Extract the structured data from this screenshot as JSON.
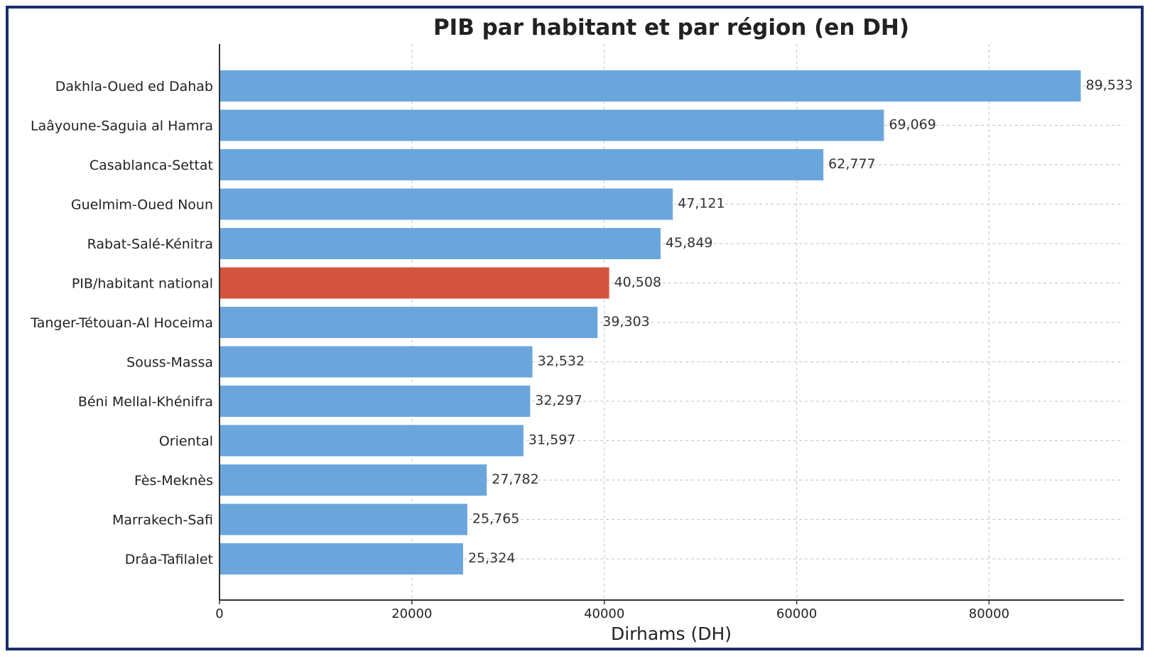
{
  "chart_data": {
    "type": "bar",
    "orientation": "horizontal",
    "title": "PIB par habitant et par région (en DH)",
    "xlabel": "Dirhams (DH)",
    "ylabel": "",
    "xlim": [
      0,
      94000
    ],
    "xticks": [
      0,
      20000,
      40000,
      60000,
      80000
    ],
    "grid": true,
    "categories": [
      "Dakhla-Oued ed Dahab",
      "Laâyoune-Saguia al Hamra",
      "Casablanca-Settat",
      "Guelmim-Oued Noun",
      "Rabat-Salé-Kénitra",
      "PIB/habitant national",
      "Tanger-Tétouan-Al Hoceima",
      "Souss-Massa",
      "Béni Mellal-Khénifra",
      "Oriental",
      "Fès-Meknès",
      "Marrakech-Safi",
      "Drâa-Tafilalet"
    ],
    "values": [
      89533,
      69069,
      62777,
      47121,
      45849,
      40508,
      39303,
      32532,
      32297,
      31597,
      27782,
      25765,
      25324
    ],
    "value_labels": [
      "89,533",
      "69,069",
      "62,777",
      "47,121",
      "45,849",
      "40,508",
      "39,303",
      "32,532",
      "32,297",
      "31,597",
      "27,782",
      "25,765",
      "25,324"
    ],
    "highlight_category": "PIB/habitant national",
    "colors": {
      "bar": "#6aa6dc",
      "highlight": "#d4533e",
      "axis": "#333333",
      "grid": "#cccccc",
      "border": "#1b2f6b"
    }
  }
}
